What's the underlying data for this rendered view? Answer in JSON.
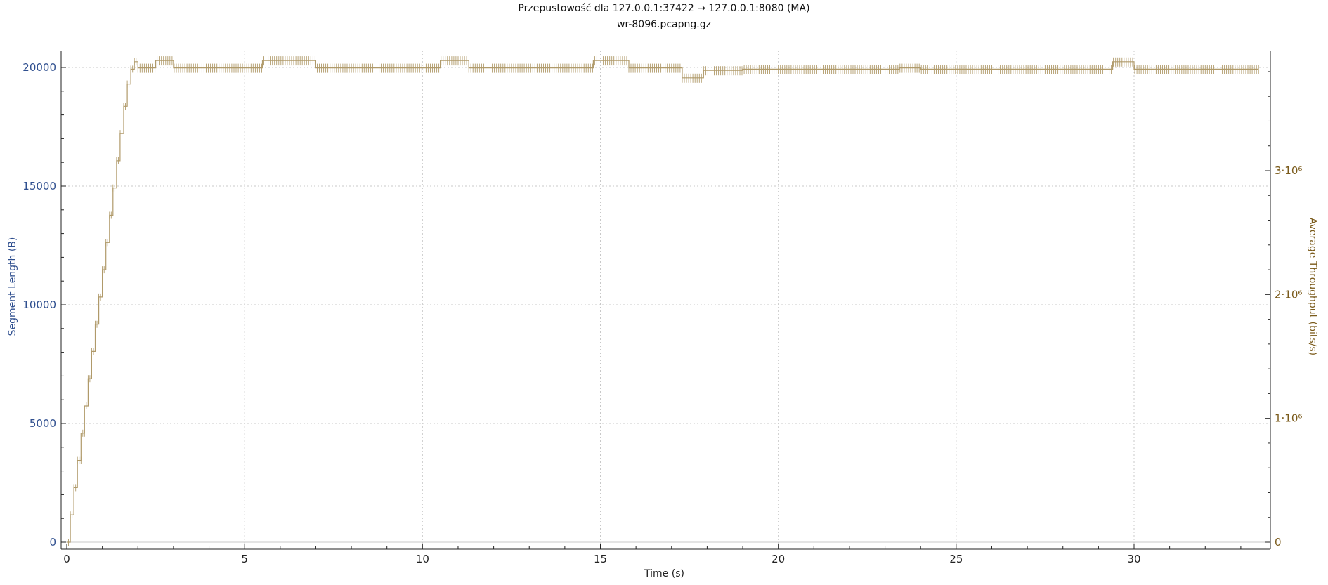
{
  "header": {
    "title": "Przepustowość dla 127.0.0.1:37422 → 127.0.0.1:8080 (MA)",
    "subtitle": "wr-8096.pcapng.gz"
  },
  "colors": {
    "left_axis": "#2f4f8f",
    "right_axis": "#7a5a1a",
    "series": "#b09a6a",
    "grid": "#c8c8c8",
    "axis": "#222222"
  },
  "chart_data": {
    "type": "line",
    "title": "Przepustowość dla 127.0.0.1:37422 → 127.0.0.1:8080 (MA)",
    "subtitle": "wr-8096.pcapng.gz",
    "xlabel": "Time (s)",
    "ylabel_left": "Segment Length (B)",
    "ylabel_right": "Average Throughput (bits/s)",
    "xlim": [
      0,
      33.6
    ],
    "ylim_left": [
      0,
      20500
    ],
    "ylim_right": [
      0,
      4200000
    ],
    "x_ticks": [
      "0",
      "5",
      "10",
      "15",
      "20",
      "25",
      "30"
    ],
    "x_tick_values": [
      0,
      5,
      10,
      15,
      20,
      25,
      30
    ],
    "y_left_ticks": [
      "0",
      "5000",
      "10000",
      "15000",
      "20000"
    ],
    "y_left_tick_values": [
      0,
      5000,
      10000,
      15000,
      20000
    ],
    "y_right_ticks": [
      "0",
      "1·10⁶",
      "2·10⁶",
      "3·10⁶"
    ],
    "y_right_tick_values": [
      0,
      1000000,
      2000000,
      3000000
    ],
    "grid": true,
    "series": [
      {
        "axis": "right",
        "points": [
          [
            0,
            0
          ],
          [
            0.1,
            220000
          ],
          [
            0.2,
            440000
          ],
          [
            0.3,
            660000
          ],
          [
            0.4,
            880000
          ],
          [
            0.5,
            1100000
          ],
          [
            0.6,
            1320000
          ],
          [
            0.7,
            1540000
          ],
          [
            0.8,
            1760000
          ],
          [
            0.9,
            1980000
          ],
          [
            1.0,
            2200000
          ],
          [
            1.1,
            2420000
          ],
          [
            1.2,
            2640000
          ],
          [
            1.3,
            2860000
          ],
          [
            1.4,
            3080000
          ],
          [
            1.5,
            3300000
          ],
          [
            1.6,
            3520000
          ],
          [
            1.7,
            3700000
          ],
          [
            1.8,
            3820000
          ],
          [
            1.9,
            3880000
          ],
          [
            2.0,
            3830000
          ],
          [
            2.5,
            3890000
          ],
          [
            3.0,
            3830000
          ],
          [
            3.5,
            3830000
          ],
          [
            4.0,
            3830000
          ],
          [
            5.0,
            3830000
          ],
          [
            5.5,
            3890000
          ],
          [
            6.5,
            3890000
          ],
          [
            7.0,
            3830000
          ],
          [
            8.0,
            3830000
          ],
          [
            9.0,
            3830000
          ],
          [
            10.0,
            3830000
          ],
          [
            10.5,
            3890000
          ],
          [
            11.0,
            3890000
          ],
          [
            11.3,
            3830000
          ],
          [
            12.5,
            3830000
          ],
          [
            13.5,
            3830000
          ],
          [
            14.0,
            3830000
          ],
          [
            14.8,
            3890000
          ],
          [
            15.5,
            3890000
          ],
          [
            15.8,
            3830000
          ],
          [
            16.5,
            3830000
          ],
          [
            17.3,
            3750000
          ],
          [
            17.7,
            3750000
          ],
          [
            17.9,
            3810000
          ],
          [
            19.0,
            3820000
          ],
          [
            20.0,
            3820000
          ],
          [
            21.0,
            3820000
          ],
          [
            22.0,
            3820000
          ],
          [
            23.0,
            3820000
          ],
          [
            23.4,
            3830000
          ],
          [
            24.0,
            3820000
          ],
          [
            25.0,
            3820000
          ],
          [
            26.0,
            3820000
          ],
          [
            27.0,
            3820000
          ],
          [
            28.0,
            3820000
          ],
          [
            29.0,
            3820000
          ],
          [
            29.4,
            3880000
          ],
          [
            29.8,
            3880000
          ],
          [
            30.0,
            3820000
          ],
          [
            31.0,
            3820000
          ],
          [
            32.0,
            3820000
          ],
          [
            33.0,
            3820000
          ],
          [
            33.5,
            3820000
          ]
        ]
      }
    ]
  }
}
